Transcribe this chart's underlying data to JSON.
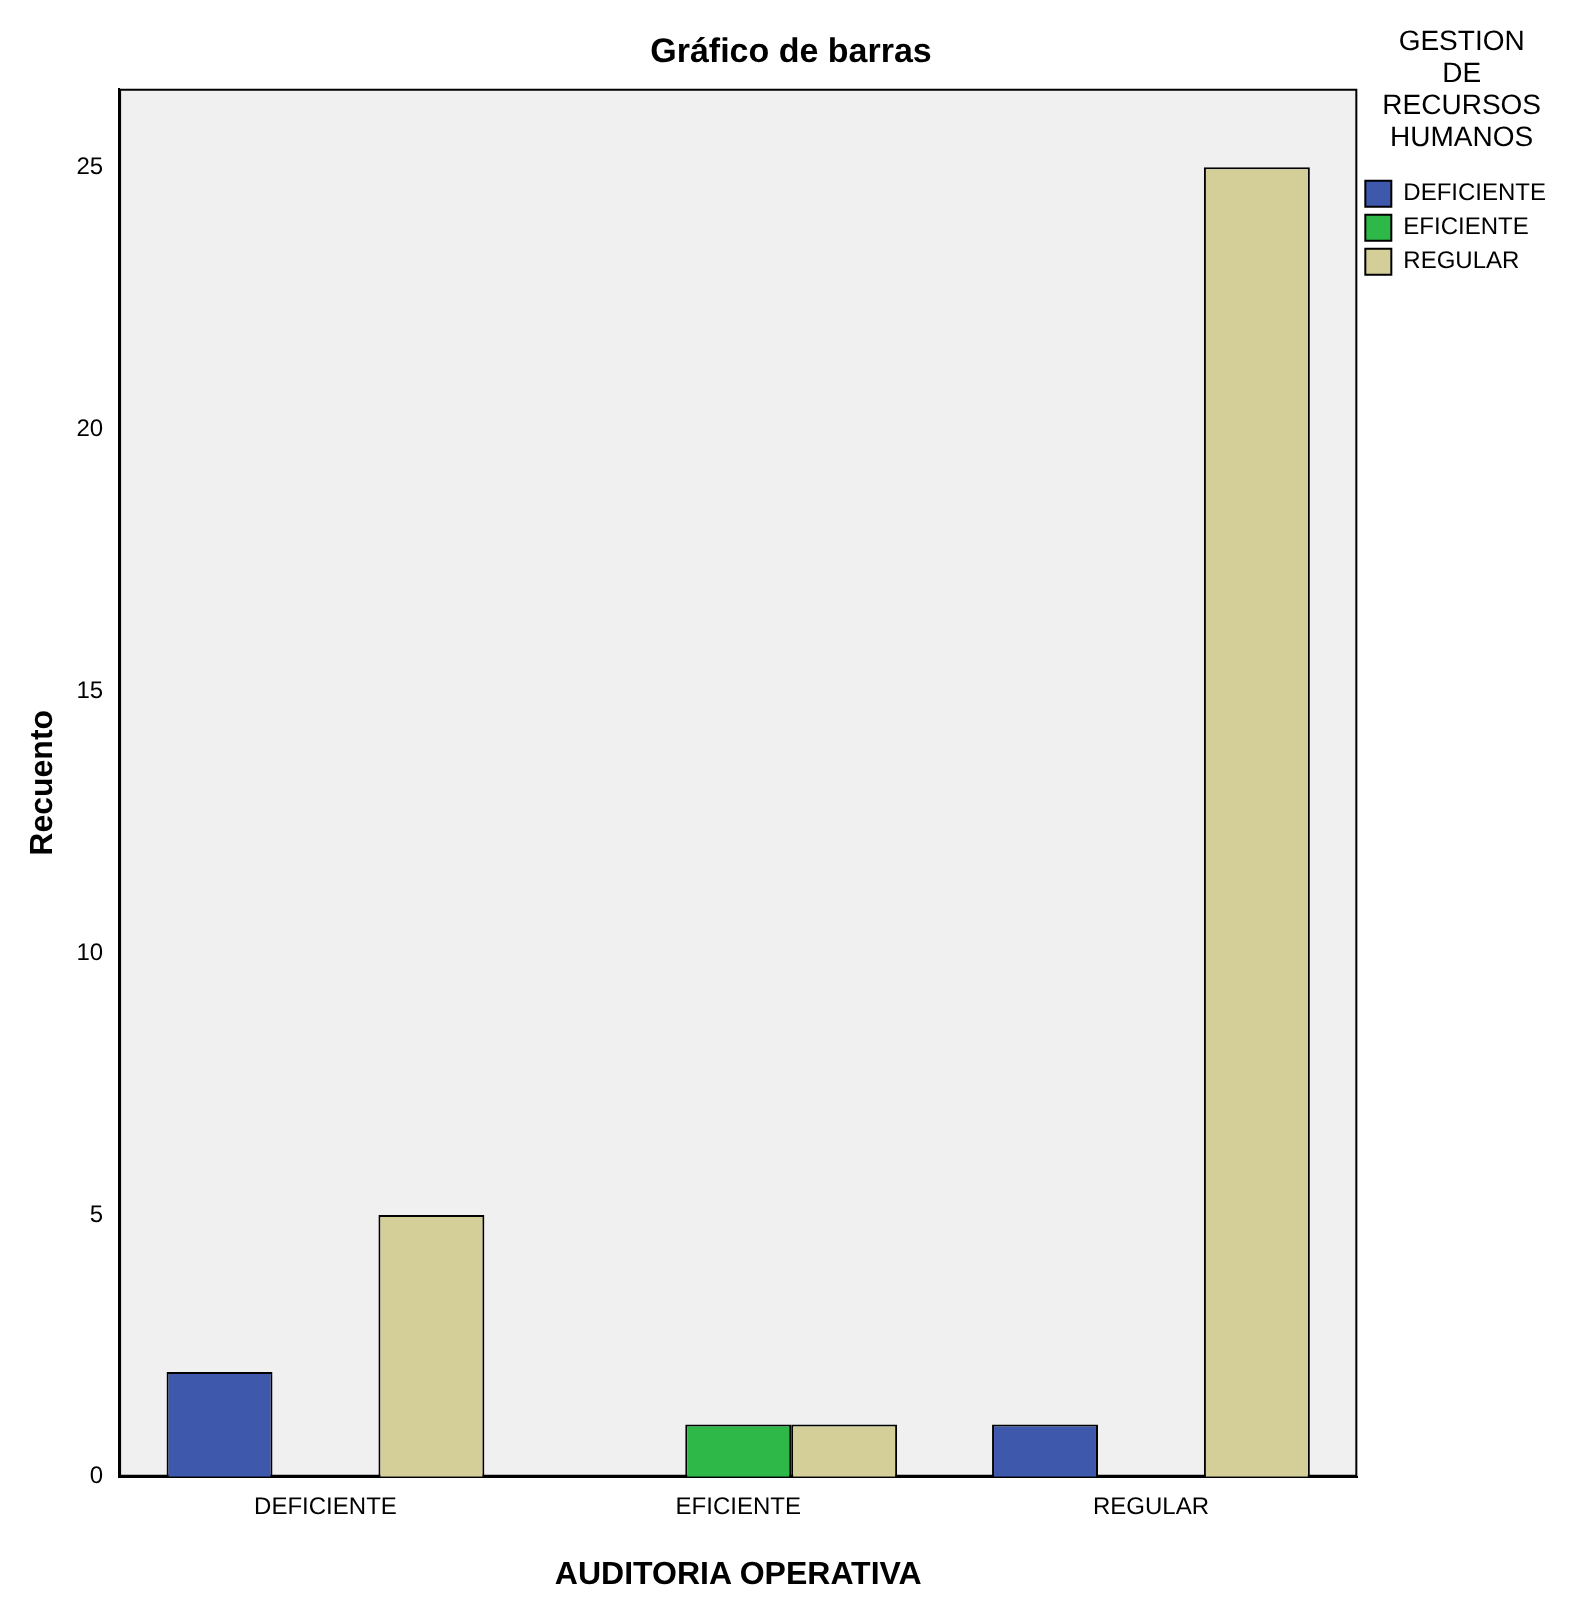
{
  "chart_data": {
    "type": "bar",
    "title": "Gráfico de barras",
    "xlabel": "AUDITORIA OPERATIVA",
    "ylabel": "Recuento",
    "legend_title": "GESTION DE RECURSOS HUMANOS",
    "categories": [
      "DEFICIENTE",
      "EFICIENTE",
      "REGULAR"
    ],
    "series": [
      {
        "name": "DEFICIENTE",
        "color": "#3e58ac",
        "values": [
          2,
          null,
          1
        ]
      },
      {
        "name": "EFICIENTE",
        "color": "#2eb848",
        "values": [
          null,
          1,
          null
        ]
      },
      {
        "name": "REGULAR",
        "color": "#d4cf98",
        "values": [
          5,
          1,
          25
        ]
      }
    ],
    "ylim": [
      0,
      26.5
    ],
    "yticks": [
      0,
      5,
      10,
      15,
      20,
      25
    ],
    "grid": false,
    "legend": "top right"
  }
}
